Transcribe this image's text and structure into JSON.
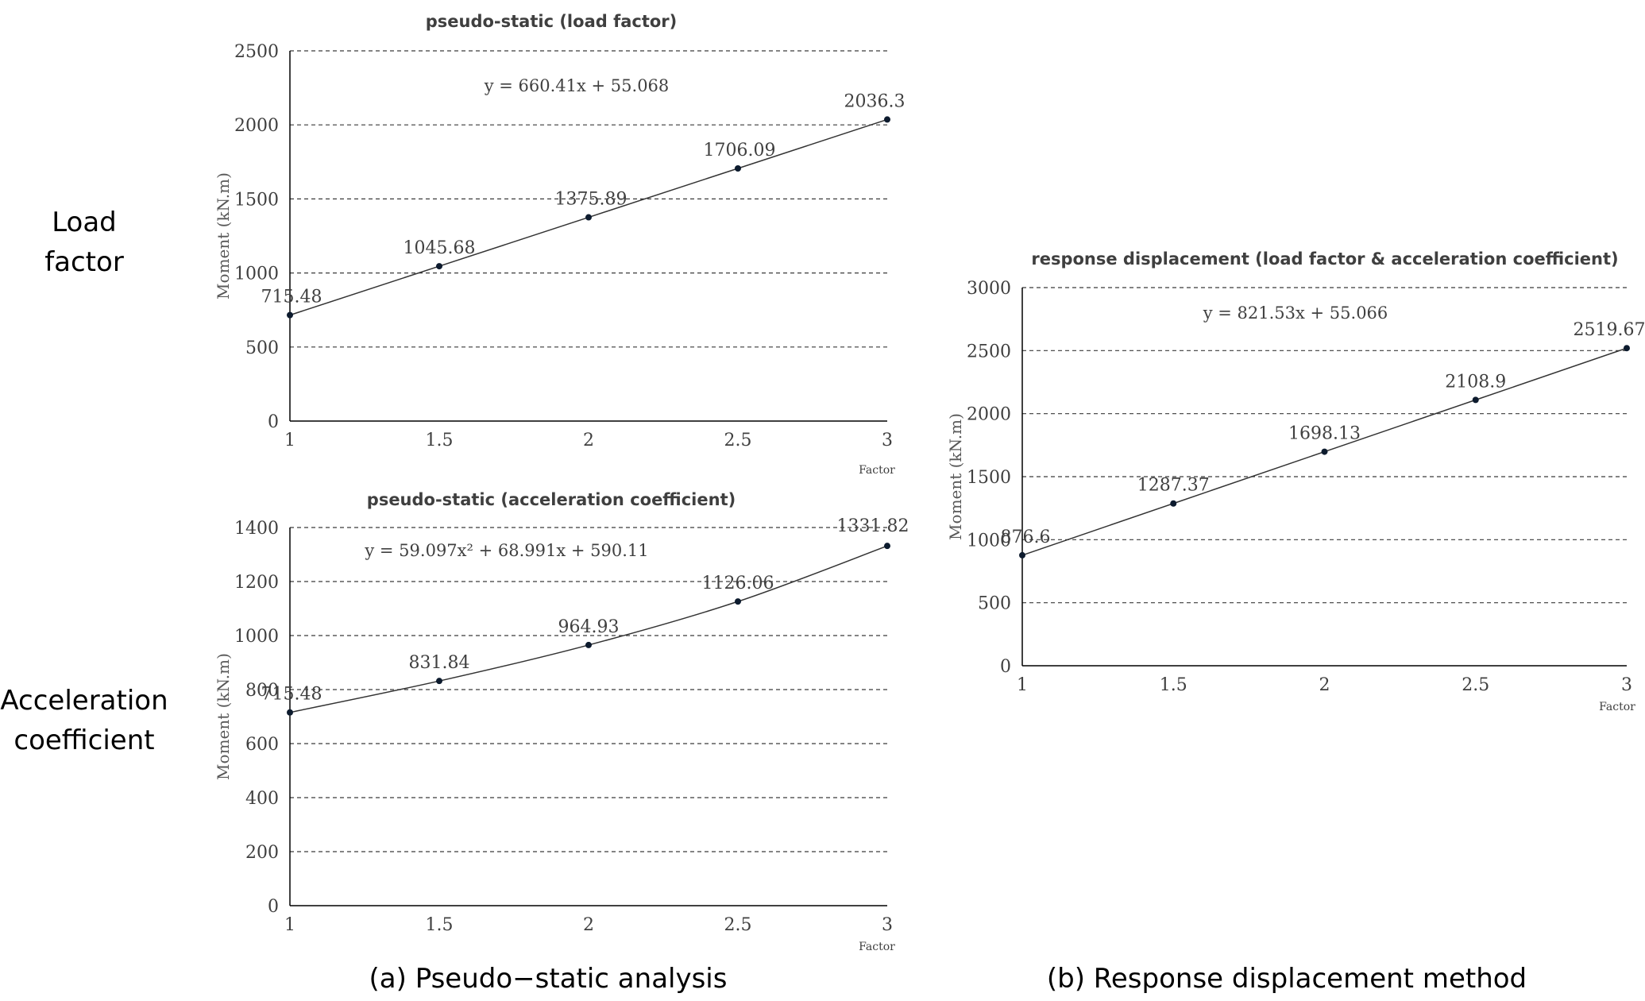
{
  "row_labels": {
    "load_factor": [
      "Load",
      "factor"
    ],
    "acceleration": [
      "Acceleration",
      "coefficient"
    ]
  },
  "captions": {
    "a": "(a) Pseudo−static analysis",
    "b": "(b) Response displacement method"
  },
  "colors": {
    "line": "#333333",
    "marker": "#0d1b2e",
    "grid": "#3a3a3a"
  },
  "chart_data": [
    {
      "id": "load",
      "type": "line",
      "title": "pseudo-static (load factor)",
      "xlabel": "Factor",
      "ylabel": "Moment (kN.m)",
      "x": [
        1,
        1.5,
        2,
        2.5,
        3
      ],
      "series": [
        {
          "values": [
            715.48,
            1045.68,
            1375.89,
            1706.09,
            2036.3
          ],
          "labels": [
            "715.48",
            "1045.68",
            "1375.89",
            "1706.09",
            "2036.3"
          ]
        }
      ],
      "trendline": {
        "equation": "y = 660.41x + 55.068",
        "kind": "linear"
      },
      "xlim": [
        1,
        3
      ],
      "ylim": [
        0,
        2500
      ],
      "xticks": [
        "1",
        "1.5",
        "2",
        "2.5",
        "3"
      ],
      "yticks": [
        "0",
        "500",
        "1000",
        "1500",
        "2000",
        "2500"
      ],
      "grid": true
    },
    {
      "id": "accel",
      "type": "line",
      "title": "pseudo-static (acceleration coefficient)",
      "xlabel": "Factor",
      "ylabel": "Moment (kN.m)",
      "x": [
        1,
        1.5,
        2,
        2.5,
        3
      ],
      "series": [
        {
          "values": [
            715.48,
            831.84,
            964.93,
            1126.06,
            1331.82
          ],
          "labels": [
            "715.48",
            "831.84",
            "964.93",
            "1126.06",
            "1331.82"
          ]
        }
      ],
      "trendline": {
        "equation": "y = 59.097x² + 68.991x + 590.11",
        "kind": "polynomial"
      },
      "xlim": [
        1,
        3
      ],
      "ylim": [
        0,
        1400
      ],
      "xticks": [
        "1",
        "1.5",
        "2",
        "2.5",
        "3"
      ],
      "yticks": [
        "0",
        "200",
        "400",
        "600",
        "800",
        "1000",
        "1200",
        "1400"
      ],
      "grid": true
    },
    {
      "id": "resp",
      "type": "line",
      "title": "response displacement (load factor & acceleration coefficient)",
      "xlabel": "Factor",
      "ylabel": "Moment (kN.m)",
      "x": [
        1,
        1.5,
        2,
        2.5,
        3
      ],
      "series": [
        {
          "values": [
            876.6,
            1287.37,
            1698.13,
            2108.9,
            2519.67
          ],
          "labels": [
            "876.6",
            "1287.37",
            "1698.13",
            "2108.9",
            "2519.67"
          ]
        }
      ],
      "trendline": {
        "equation": "y = 821.53x + 55.066",
        "kind": "linear"
      },
      "xlim": [
        1,
        3
      ],
      "ylim": [
        0,
        3000
      ],
      "xticks": [
        "1",
        "1.5",
        "2",
        "2.5",
        "3"
      ],
      "yticks": [
        "0",
        "500",
        "1000",
        "1500",
        "2000",
        "2500",
        "3000"
      ],
      "grid": true
    }
  ]
}
